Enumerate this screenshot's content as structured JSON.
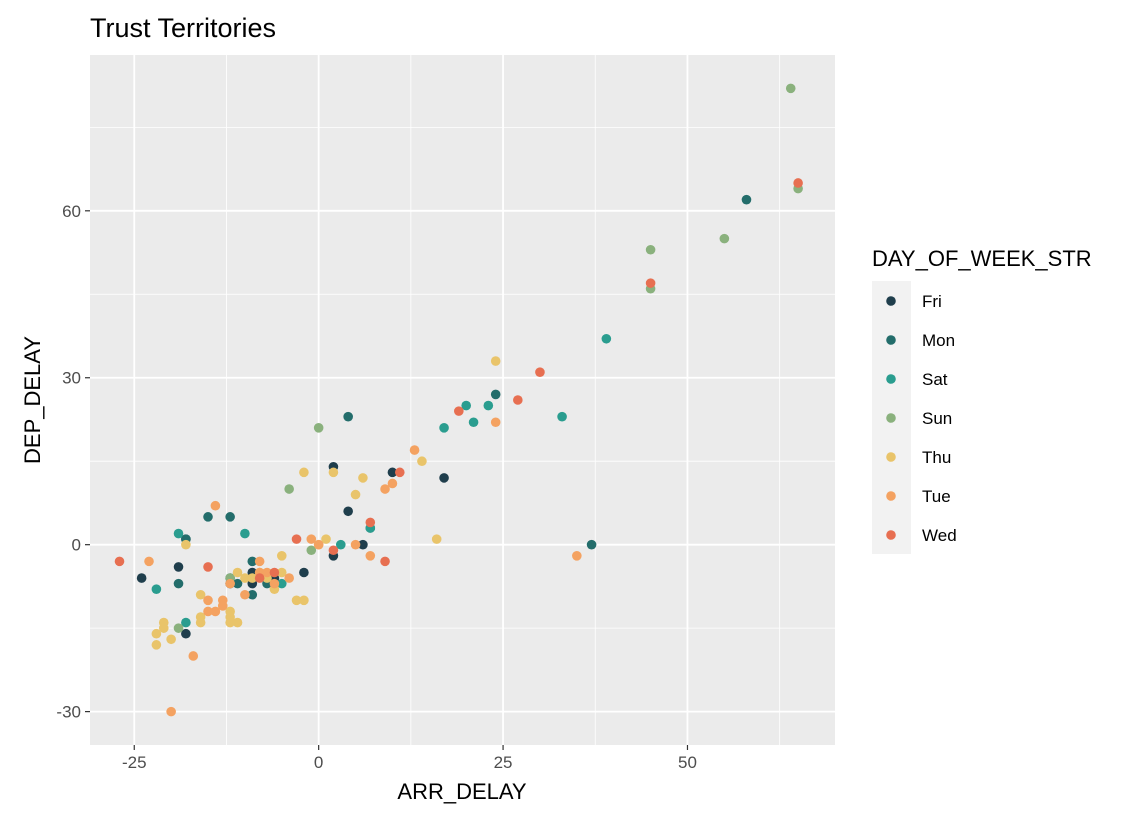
{
  "chart_data": {
    "type": "scatter",
    "title": "Trust Territories",
    "xlabel": "ARR_DELAY",
    "ylabel": "DEP_DELAY",
    "xlim": [
      -31,
      70
    ],
    "ylim": [
      -36,
      88
    ],
    "x_ticks": [
      -25,
      0,
      25,
      50
    ],
    "y_ticks": [
      -30,
      0,
      30,
      60
    ],
    "x_tick_labels": [
      "-25",
      "0",
      "25",
      "50"
    ],
    "y_tick_labels": [
      "-30",
      "0",
      "30",
      "60"
    ],
    "grid": true,
    "legend": {
      "title": "DAY_OF_WEEK_STR",
      "position": "right",
      "entries": [
        "Fri",
        "Mon",
        "Sat",
        "Sun",
        "Thu",
        "Tue",
        "Wed"
      ]
    },
    "colors": {
      "Fri": "#1f3e4c",
      "Mon": "#236d6b",
      "Sat": "#2a9d8f",
      "Sun": "#8ab17d",
      "Thu": "#e9c46a",
      "Tue": "#f4a261",
      "Wed": "#e76f51"
    },
    "series": [
      {
        "name": "Fri",
        "points": [
          [
            -24,
            -6
          ],
          [
            -19,
            -4
          ],
          [
            -18,
            1
          ],
          [
            -18,
            -16
          ],
          [
            -12,
            -7
          ],
          [
            -9,
            -5
          ],
          [
            -9,
            -7
          ],
          [
            -6,
            -6
          ],
          [
            -2,
            -5
          ],
          [
            2,
            14
          ],
          [
            2,
            -2
          ],
          [
            4,
            6
          ],
          [
            6,
            0
          ],
          [
            10,
            13
          ],
          [
            17,
            12
          ]
        ]
      },
      {
        "name": "Mon",
        "points": [
          [
            -19,
            -7
          ],
          [
            -18,
            1
          ],
          [
            -15,
            5
          ],
          [
            -12,
            5
          ],
          [
            -12,
            -6
          ],
          [
            -11,
            -7
          ],
          [
            -9,
            -3
          ],
          [
            -9,
            -9
          ],
          [
            -7,
            -7
          ],
          [
            4,
            23
          ],
          [
            7,
            3
          ],
          [
            24,
            27
          ],
          [
            37,
            0
          ],
          [
            58,
            62
          ]
        ]
      },
      {
        "name": "Sat",
        "points": [
          [
            -22,
            -8
          ],
          [
            -19,
            2
          ],
          [
            -18,
            -14
          ],
          [
            -10,
            2
          ],
          [
            -5,
            -7
          ],
          [
            3,
            0
          ],
          [
            7,
            3
          ],
          [
            17,
            21
          ],
          [
            20,
            25
          ],
          [
            21,
            22
          ],
          [
            23,
            25
          ],
          [
            33,
            23
          ],
          [
            39,
            37
          ]
        ]
      },
      {
        "name": "Sun",
        "points": [
          [
            -19,
            -15
          ],
          [
            -12,
            -6
          ],
          [
            -4,
            10
          ],
          [
            -1,
            -1
          ],
          [
            0,
            21
          ],
          [
            45,
            53
          ],
          [
            45,
            46
          ],
          [
            55,
            55
          ],
          [
            64,
            82
          ],
          [
            65,
            64
          ]
        ]
      },
      {
        "name": "Thu",
        "points": [
          [
            -22,
            -16
          ],
          [
            -22,
            -18
          ],
          [
            -21,
            -14
          ],
          [
            -21,
            -15
          ],
          [
            -20,
            -17
          ],
          [
            -18,
            0
          ],
          [
            -16,
            -9
          ],
          [
            -16,
            -13
          ],
          [
            -16,
            -14
          ],
          [
            -13,
            -11
          ],
          [
            -12,
            -12
          ],
          [
            -12,
            -13
          ],
          [
            -12,
            -14
          ],
          [
            -11,
            -5
          ],
          [
            -11,
            -14
          ],
          [
            -10,
            -6
          ],
          [
            -9,
            -6
          ],
          [
            -8,
            -5
          ],
          [
            -7,
            -6
          ],
          [
            -6,
            -8
          ],
          [
            -5,
            -2
          ],
          [
            -5,
            -5
          ],
          [
            -3,
            -10
          ],
          [
            -2,
            -10
          ],
          [
            -2,
            13
          ],
          [
            0,
            0
          ],
          [
            1,
            1
          ],
          [
            2,
            13
          ],
          [
            5,
            9
          ],
          [
            6,
            12
          ],
          [
            14,
            15
          ],
          [
            16,
            1
          ],
          [
            24,
            33
          ]
        ]
      },
      {
        "name": "Tue",
        "points": [
          [
            -23,
            -3
          ],
          [
            -20,
            -30
          ],
          [
            -17,
            -20
          ],
          [
            -15,
            -10
          ],
          [
            -15,
            -12
          ],
          [
            -14,
            -12
          ],
          [
            -14,
            7
          ],
          [
            -13,
            -10
          ],
          [
            -13,
            -11
          ],
          [
            -12,
            -7
          ],
          [
            -10,
            -9
          ],
          [
            -8,
            -3
          ],
          [
            -8,
            -5
          ],
          [
            -7,
            -5
          ],
          [
            -6,
            -7
          ],
          [
            -4,
            -6
          ],
          [
            -1,
            1
          ],
          [
            0,
            0
          ],
          [
            5,
            0
          ],
          [
            7,
            -2
          ],
          [
            9,
            10
          ],
          [
            10,
            11
          ],
          [
            13,
            17
          ],
          [
            24,
            22
          ],
          [
            35,
            -2
          ]
        ]
      },
      {
        "name": "Wed",
        "points": [
          [
            -27,
            -3
          ],
          [
            -15,
            -4
          ],
          [
            -8,
            -6
          ],
          [
            -6,
            -5
          ],
          [
            -3,
            1
          ],
          [
            2,
            -1
          ],
          [
            7,
            4
          ],
          [
            9,
            -3
          ],
          [
            11,
            13
          ],
          [
            19,
            24
          ],
          [
            27,
            26
          ],
          [
            30,
            31
          ],
          [
            45,
            47
          ],
          [
            65,
            65
          ]
        ]
      }
    ]
  }
}
